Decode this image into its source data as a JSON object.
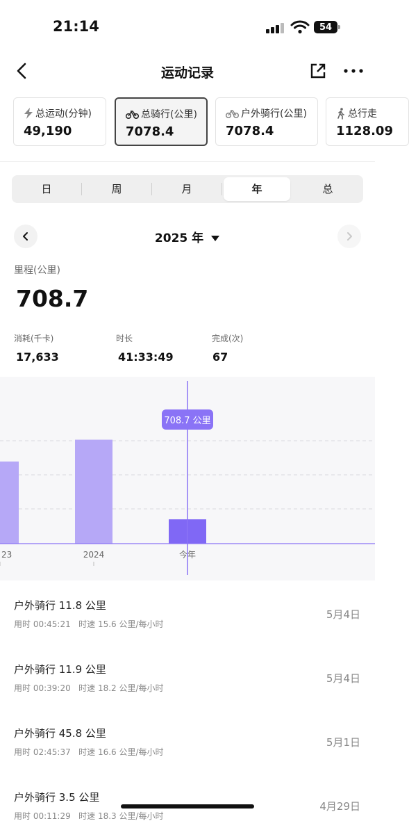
{
  "status": {
    "time": "21:14",
    "battery": "54"
  },
  "nav": {
    "title": "运动记录"
  },
  "cards": [
    {
      "icon": "bolt-icon",
      "label": "总运动(分钟)",
      "value": "49,190"
    },
    {
      "icon": "bike-icon",
      "label": "总骑行(公里)",
      "value": "7078.4"
    },
    {
      "icon": "bike-icon",
      "label": "户外骑行(公里)",
      "value": "7078.4"
    },
    {
      "icon": "walk-icon",
      "label": "总行走",
      "value": "1128.09"
    }
  ],
  "segments": [
    "日",
    "周",
    "月",
    "年",
    "总"
  ],
  "selected_segment": "年",
  "period": {
    "label": "2025 年"
  },
  "metric": {
    "label": "里程(公里)",
    "value": "708.7"
  },
  "stats": [
    {
      "label": "消耗(千卡)",
      "value": "17,633"
    },
    {
      "label": "时长",
      "value": "41:33:49"
    },
    {
      "label": "完成(次)",
      "value": "67"
    }
  ],
  "chart_data": {
    "type": "bar",
    "categories": [
      "23",
      "2024",
      "今年"
    ],
    "values": [
      2395,
      3030,
      708.7
    ],
    "highlight_index": 2,
    "tooltip": "708.7 公里",
    "colors": {
      "bar": "#b6a8f7",
      "highlight": "#8068f5",
      "tooltip": "#8a73f6"
    }
  },
  "records": [
    {
      "title": "户外骑行  11.8 公里",
      "time": "用时 00:45:21",
      "speed": "时速 15.6 公里/每小时",
      "date": "5月4日"
    },
    {
      "title": "户外骑行  11.9 公里",
      "time": "用时 00:39:20",
      "speed": "时速 18.2 公里/每小时",
      "date": "5月4日"
    },
    {
      "title": "户外骑行  45.8 公里",
      "time": "用时 02:45:37",
      "speed": "时速 16.6 公里/每小时",
      "date": "5月1日"
    },
    {
      "title": "户外骑行  3.5 公里",
      "time": "用时 00:11:29",
      "speed": "时速 18.3 公里/每小时",
      "date": "4月29日"
    }
  ]
}
